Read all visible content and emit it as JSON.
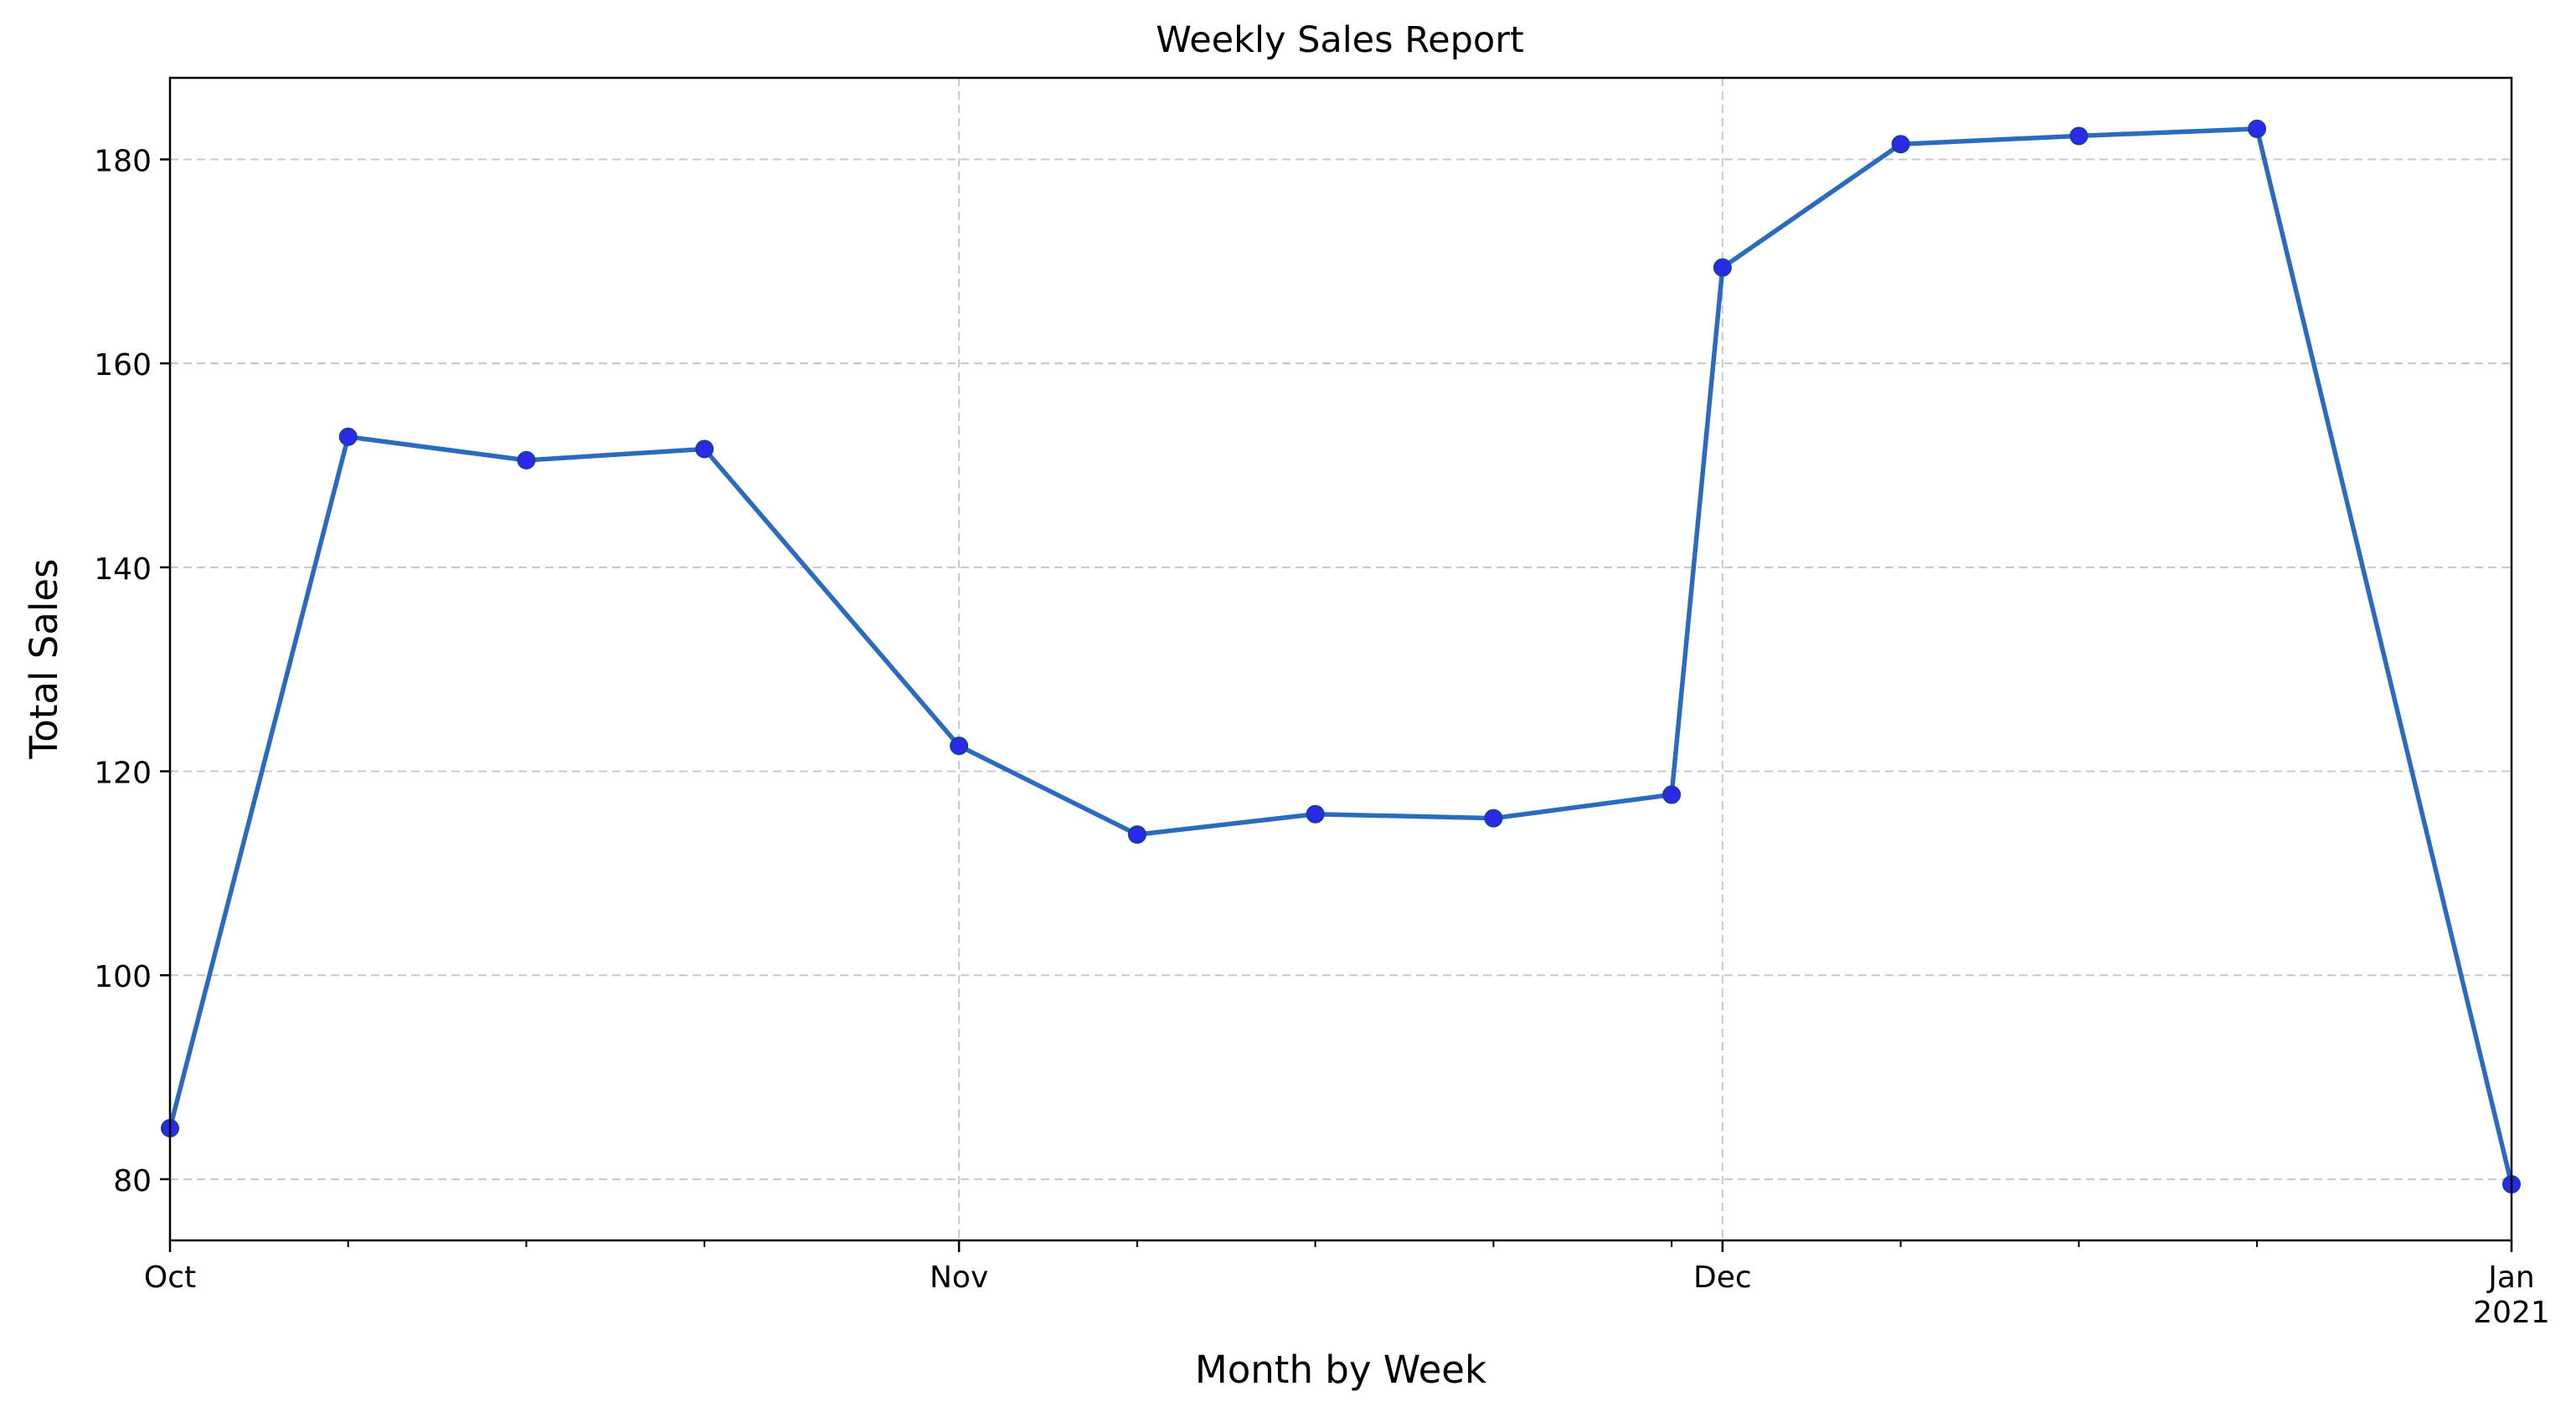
{
  "chart_data": {
    "type": "line",
    "title": "Weekly Sales Report",
    "xlabel": "Month by Week",
    "ylabel": "Total Sales",
    "x": [
      "2020-10-01",
      "2020-10-08",
      "2020-10-15",
      "2020-10-22",
      "2020-11-01",
      "2020-11-08",
      "2020-11-15",
      "2020-11-22",
      "2020-11-29",
      "2020-12-01",
      "2020-12-08",
      "2020-12-15",
      "2020-12-22",
      "2021-01-01"
    ],
    "x_range": [
      "2020-10-01",
      "2021-01-01"
    ],
    "x_ticks": [
      {
        "date": "2020-10-01",
        "label": "Oct",
        "sublabel": ""
      },
      {
        "date": "2020-11-01",
        "label": "Nov",
        "sublabel": ""
      },
      {
        "date": "2020-12-01",
        "label": "Dec",
        "sublabel": ""
      },
      {
        "date": "2021-01-01",
        "label": "Jan",
        "sublabel": "2021"
      }
    ],
    "x_minor_ticks": [
      "2020-10-08",
      "2020-10-15",
      "2020-10-22",
      "2020-11-08",
      "2020-11-15",
      "2020-11-22",
      "2020-11-29",
      "2020-12-08",
      "2020-12-15",
      "2020-12-22"
    ],
    "series": [
      {
        "values": [
          85.0,
          152.8,
          150.5,
          151.6,
          122.5,
          113.8,
          115.8,
          115.4,
          117.7,
          169.4,
          181.5,
          182.3,
          183.0,
          79.5
        ]
      }
    ],
    "ylim": [
      74,
      188
    ],
    "y_ticks": [
      80,
      100,
      120,
      140,
      160,
      180
    ],
    "grid": true,
    "line_color": "#2a6bbf",
    "marker_color": "#2a2ae8"
  }
}
